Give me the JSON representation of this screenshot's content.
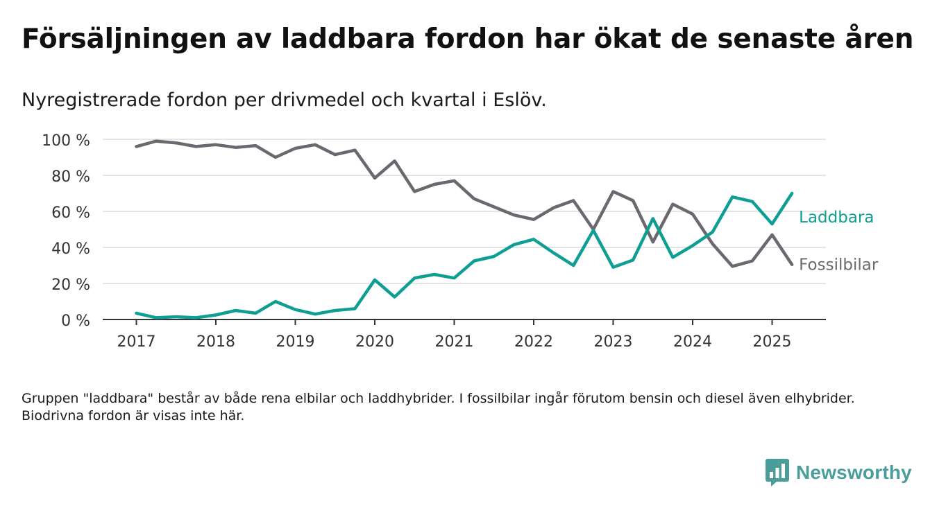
{
  "title": "Försäljningen av laddbara fordon har ökat de senaste åren",
  "subtitle": "Nyregistrerade fordon per drivmedel och kvartal i Eslöv.",
  "note": "Gruppen \"laddbara\" består av både rena elbilar och laddhybrider. I fossilbilar ingår förutom bensin och diesel även elhybrider. Biodrivna fordon är visas inte här.",
  "brand": {
    "name": "Newsworthy",
    "color": "#4a9d9a"
  },
  "chart_data": {
    "type": "line",
    "title": "Försäljningen av laddbara fordon har ökat de senaste åren",
    "subtitle": "Nyregistrerade fordon per drivmedel och kvartal i Eslöv.",
    "xlabel": "",
    "ylabel": "",
    "ylim": [
      0,
      100
    ],
    "y_ticks": [
      0,
      20,
      40,
      60,
      80,
      100
    ],
    "y_tick_labels": [
      "0 %",
      "20 %",
      "40 %",
      "60 %",
      "80 %",
      "100 %"
    ],
    "x_ticks": [
      2017,
      2018,
      2019,
      2020,
      2021,
      2022,
      2023,
      2024,
      2025
    ],
    "x_tick_labels": [
      "2017",
      "2018",
      "2019",
      "2020",
      "2021",
      "2022",
      "2023",
      "2024",
      "2025"
    ],
    "grid": "horizontal",
    "legend": "inline labels at right end of lines",
    "x": [
      "2017-Q1",
      "2017-Q2",
      "2017-Q3",
      "2017-Q4",
      "2018-Q1",
      "2018-Q2",
      "2018-Q3",
      "2018-Q4",
      "2019-Q1",
      "2019-Q2",
      "2019-Q3",
      "2019-Q4",
      "2020-Q1",
      "2020-Q2",
      "2020-Q3",
      "2020-Q4",
      "2021-Q1",
      "2021-Q2",
      "2021-Q3",
      "2021-Q4",
      "2022-Q1",
      "2022-Q2",
      "2022-Q3",
      "2022-Q4",
      "2023-Q1",
      "2023-Q2",
      "2023-Q3",
      "2023-Q4",
      "2024-Q1",
      "2024-Q2",
      "2024-Q3",
      "2024-Q4",
      "2025-Q1",
      "2025-Q2"
    ],
    "series": [
      {
        "name": "Laddbara",
        "color": "#0e9e94",
        "values": [
          3.5,
          1,
          1.5,
          1,
          2.5,
          5,
          3.5,
          10,
          5.5,
          3,
          5,
          6,
          22,
          12.5,
          23,
          25,
          23,
          32.5,
          35,
          41.5,
          44.5,
          37,
          30,
          49.5,
          29,
          33,
          56,
          34.5,
          41,
          48.5,
          68,
          65.5,
          53,
          70
        ]
      },
      {
        "name": "Fossilbilar",
        "color": "#6b6870",
        "values": [
          96,
          99,
          98,
          96,
          97,
          95.5,
          96.5,
          90,
          95,
          97,
          91.5,
          94,
          78.5,
          88,
          71,
          75,
          77,
          67,
          62.5,
          58,
          55.5,
          62,
          66,
          50,
          71,
          66,
          43,
          64,
          58.5,
          42,
          29.5,
          32.5,
          47,
          30.5
        ]
      }
    ]
  }
}
